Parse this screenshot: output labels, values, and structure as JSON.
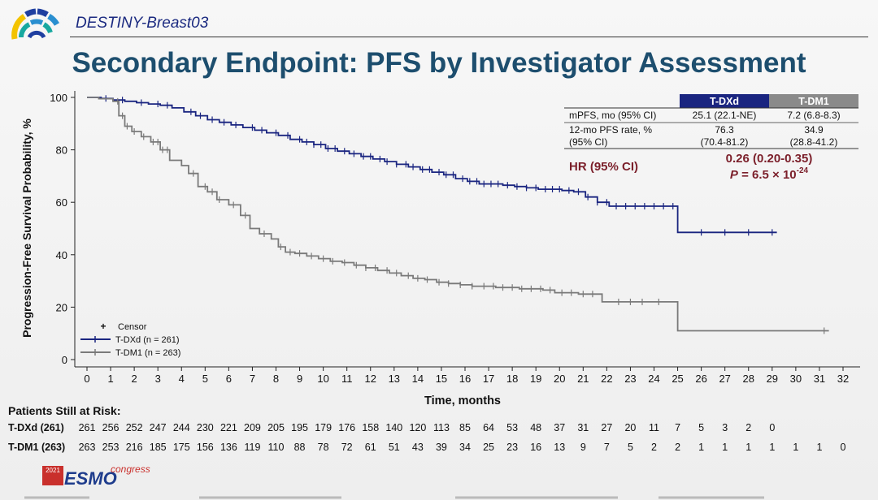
{
  "header": {
    "study_name": "DESTINY-Breast03",
    "title": "Secondary Endpoint: PFS by Investigator Assessment"
  },
  "colors": {
    "tdxd": "#1a2580",
    "tdm1": "#7a7a7a",
    "title": "#1d4e6e",
    "hr": "#7b1f2a"
  },
  "stats_table": {
    "columns": [
      "T-DXd",
      "T-DM1"
    ],
    "rows": [
      {
        "label": "mPFS, mo (95% CI)",
        "tdxd": "25.1 (22.1-NE)",
        "tdm1": "7.2 (6.8-8.3)"
      },
      {
        "label": "12-mo PFS rate, %",
        "tdxd": "76.3",
        "tdm1": "34.9"
      },
      {
        "label": "(95% CI)",
        "tdxd": "(70.4-81.2)",
        "tdm1": "(28.8-41.2)"
      }
    ],
    "hr_label": "HR (95% CI)",
    "hr_value": "0.26 (0.20-0.35)",
    "p_prefix": "P",
    "p_value": "= 6.5 × 10",
    "p_exponent": "-24"
  },
  "chart_data": {
    "type": "line",
    "subtype": "kaplan-meier",
    "xlabel": "Time, months",
    "ylabel": "Progression-Free Survival Probability, %",
    "xlim": [
      0,
      32
    ],
    "ylim": [
      0,
      100
    ],
    "x_ticks": [
      0,
      1,
      2,
      3,
      4,
      5,
      6,
      7,
      8,
      9,
      10,
      11,
      12,
      13,
      14,
      15,
      16,
      17,
      18,
      19,
      20,
      21,
      22,
      23,
      24,
      25,
      26,
      27,
      28,
      29,
      30,
      31,
      32
    ],
    "y_ticks": [
      0,
      20,
      40,
      60,
      80,
      100
    ],
    "legend_position": "bottom-left",
    "legend": {
      "censor_label": "Censor",
      "entries": [
        "T-DXd (n = 261)",
        "T-DM1 (n = 263)"
      ]
    },
    "series": [
      {
        "name": "T-DXd (n = 261)",
        "color": "#1a2580",
        "x": [
          0,
          0.6,
          1.1,
          1.6,
          2.1,
          2.6,
          3.1,
          3.6,
          4.1,
          4.6,
          5.1,
          5.6,
          6.1,
          6.6,
          7.1,
          7.6,
          8.1,
          8.6,
          9.1,
          9.6,
          10.1,
          10.6,
          11.1,
          11.6,
          12.1,
          12.6,
          13.1,
          13.6,
          14.1,
          14.6,
          15.1,
          15.6,
          16.1,
          16.6,
          17.1,
          17.6,
          18.1,
          18.6,
          19.1,
          19.6,
          20.1,
          20.6,
          21.1,
          21.6,
          22.1,
          22.6,
          23.1,
          23.6,
          24.1,
          24.6,
          25.0,
          25.5,
          26.5,
          27.5,
          28.5,
          29.2
        ],
        "y": [
          100,
          99.6,
          99,
          98.5,
          98,
          97.5,
          97,
          96,
          94.5,
          93,
          91.5,
          90.5,
          89.5,
          88.5,
          87.5,
          86.5,
          85.5,
          84,
          83,
          82,
          80.5,
          79.5,
          78.5,
          77.5,
          76.5,
          75.5,
          74.5,
          73.5,
          72.5,
          71.5,
          70.5,
          69,
          68,
          67,
          67,
          66.5,
          66,
          65.5,
          65,
          65,
          64.5,
          64,
          62,
          60,
          58.5,
          58.5,
          58.5,
          58.5,
          58.5,
          58.5,
          48.5,
          48.5,
          48.5,
          48.5,
          48.5,
          48.5
        ]
      },
      {
        "name": "T-DM1 (n = 263)",
        "color": "#7a7a7a",
        "x": [
          0,
          0.5,
          1.1,
          1.35,
          1.6,
          1.9,
          2.3,
          2.7,
          3.1,
          3.5,
          4.0,
          4.3,
          4.7,
          5.1,
          5.5,
          6.0,
          6.5,
          6.9,
          7.3,
          7.8,
          8.1,
          8.4,
          8.8,
          9.3,
          9.8,
          10.3,
          10.8,
          11.3,
          11.8,
          12.3,
          12.8,
          13.3,
          13.8,
          14.3,
          14.8,
          15.3,
          15.8,
          16.3,
          16.8,
          17.3,
          17.8,
          18.3,
          18.8,
          19.3,
          19.8,
          20.3,
          20.8,
          21.3,
          21.8,
          22.3,
          22.8,
          23.3,
          23.8,
          24.3,
          24.9,
          25.0,
          26.0,
          27.0,
          28.0,
          29.0,
          30.0,
          31.0,
          31.4
        ],
        "y": [
          100,
          99.5,
          98.5,
          93,
          89,
          87,
          85,
          83,
          80,
          76,
          74,
          71,
          66,
          64,
          61,
          59,
          55,
          50,
          48,
          46,
          43,
          41,
          40.5,
          39.5,
          38.5,
          37.5,
          37,
          36,
          35,
          34,
          33,
          32,
          31,
          30.5,
          29.5,
          29,
          28.5,
          28,
          28,
          27.5,
          27.5,
          27,
          27,
          26.5,
          25.5,
          25.5,
          25,
          25,
          22,
          22,
          22,
          22,
          22,
          22,
          22,
          11,
          11,
          11,
          11,
          11,
          11,
          11,
          11
        ]
      }
    ],
    "censor_marks": {
      "tdxd": [
        0.8,
        1.5,
        2.3,
        3.0,
        3.4,
        4.4,
        4.8,
        5.3,
        5.8,
        6.3,
        7.0,
        7.4,
        8.0,
        8.5,
        9.0,
        9.3,
        9.6,
        9.9,
        10.2,
        10.5,
        10.9,
        11.3,
        11.7,
        12.0,
        12.4,
        12.7,
        13.1,
        13.5,
        13.8,
        14.2,
        14.5,
        14.9,
        15.2,
        15.5,
        15.9,
        16.2,
        16.5,
        16.8,
        17.1,
        17.4,
        17.8,
        18.2,
        18.6,
        19.0,
        19.4,
        19.7,
        20.0,
        20.4,
        20.8,
        21.2,
        21.6,
        22.0,
        22.4,
        22.8,
        23.2,
        23.6,
        24.0,
        24.4,
        24.8,
        26.0,
        27.0,
        28.0,
        29.0
      ],
      "tdm1": [
        1.3,
        1.5,
        1.7,
        2.0,
        2.4,
        2.8,
        3.0,
        3.2,
        3.4,
        4.5,
        5.0,
        5.3,
        5.6,
        6.2,
        6.7,
        7.5,
        8.2,
        8.6,
        9.0,
        9.5,
        10.0,
        10.4,
        10.9,
        11.4,
        11.8,
        12.2,
        12.7,
        13.1,
        13.6,
        14.0,
        14.4,
        14.9,
        15.3,
        15.8,
        16.3,
        16.8,
        17.2,
        17.6,
        18.0,
        18.4,
        18.8,
        19.2,
        19.6,
        20.1,
        20.5,
        21.0,
        21.4,
        22.5,
        23.0,
        23.5,
        24.2,
        31.2
      ]
    }
  },
  "at_risk": {
    "title": "Patients Still at Risk:",
    "rows": [
      {
        "label": "T-DXd (261)",
        "values": [
          "261",
          "256",
          "252",
          "247",
          "244",
          "230",
          "221",
          "209",
          "205",
          "195",
          "179",
          "176",
          "158",
          "140",
          "120",
          "113",
          "85",
          "64",
          "53",
          "48",
          "37",
          "31",
          "27",
          "20",
          "11",
          "7",
          "5",
          "3",
          "2",
          "0"
        ]
      },
      {
        "label": "T-DM1 (263)",
        "values": [
          "263",
          "253",
          "216",
          "185",
          "175",
          "156",
          "136",
          "119",
          "110",
          "88",
          "78",
          "72",
          "61",
          "51",
          "43",
          "39",
          "34",
          "25",
          "23",
          "16",
          "13",
          "9",
          "7",
          "5",
          "2",
          "2",
          "1",
          "1",
          "1",
          "1",
          "1",
          "1",
          "0"
        ]
      }
    ]
  },
  "congress": {
    "year": "2021",
    "brand": "ESMO",
    "suffix": "congress"
  }
}
